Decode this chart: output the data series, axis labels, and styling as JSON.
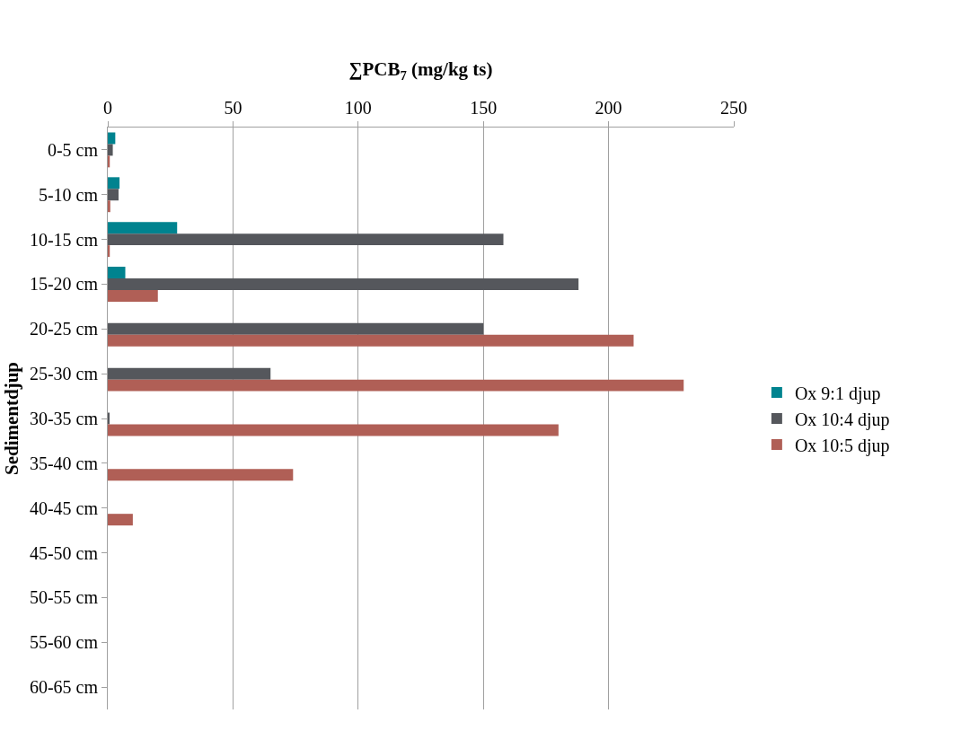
{
  "chart_data": {
    "type": "bar",
    "orientation": "horizontal",
    "xlabel": "∑PCB$_{7}$ (mg/kg ts)",
    "ylabel": "Sedimentdjup",
    "categories": [
      "0-5 cm",
      "5-10 cm",
      "10-15 cm",
      "15-20 cm",
      "20-25 cm",
      "25-30 cm",
      "30-35 cm",
      "35-40 cm",
      "40-45 cm",
      "45-50 cm",
      "50-55 cm",
      "55-60 cm",
      "60-65 cm"
    ],
    "series": [
      {
        "name": "Ox 9:1 djup",
        "color": "#00838f",
        "values": [
          3,
          4.7,
          27.7,
          7,
          null,
          null,
          null,
          null,
          null,
          null,
          null,
          null,
          null
        ]
      },
      {
        "name": "Ox 10:4 djup",
        "color": "#55575c",
        "values": [
          2,
          4.3,
          158,
          188,
          150,
          65,
          0.5,
          null,
          null,
          null,
          null,
          null,
          null
        ]
      },
      {
        "name": "Ox 10:5 djup",
        "color": "#b05f56",
        "values": [
          0.8,
          1,
          0.8,
          20,
          210,
          230,
          180,
          74,
          10,
          null,
          null,
          null,
          null
        ]
      }
    ],
    "xlim": [
      0,
      250
    ],
    "xticks": [
      0,
      50,
      100,
      150,
      200,
      250
    ],
    "grid": "x",
    "legend": "right"
  }
}
